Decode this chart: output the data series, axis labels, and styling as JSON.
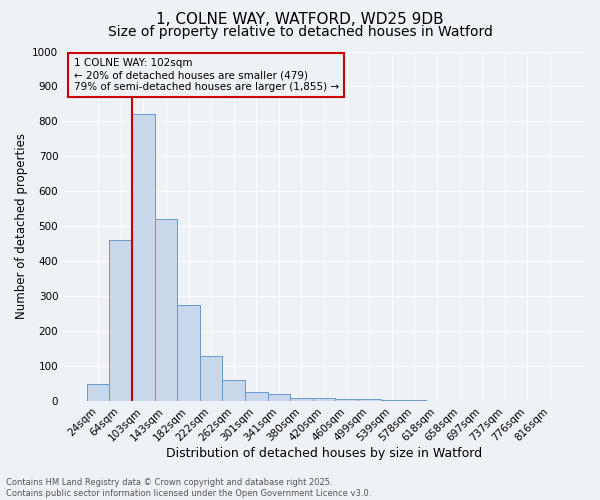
{
  "title": "1, COLNE WAY, WATFORD, WD25 9DB",
  "subtitle": "Size of property relative to detached houses in Watford",
  "xlabel": "Distribution of detached houses by size in Watford",
  "ylabel": "Number of detached properties",
  "categories": [
    "24sqm",
    "64sqm",
    "103sqm",
    "143sqm",
    "182sqm",
    "222sqm",
    "262sqm",
    "301sqm",
    "341sqm",
    "380sqm",
    "420sqm",
    "460sqm",
    "499sqm",
    "539sqm",
    "578sqm",
    "618sqm",
    "658sqm",
    "697sqm",
    "737sqm",
    "776sqm",
    "816sqm"
  ],
  "values": [
    50,
    460,
    820,
    520,
    275,
    130,
    60,
    25,
    20,
    10,
    10,
    5,
    5,
    2,
    2,
    1,
    1,
    1,
    1,
    1,
    1
  ],
  "highlight_index": 2,
  "bar_color": "#c8d8ea",
  "bar_edge_color": "#6699cc",
  "highlight_line_color": "#cc0000",
  "ylim": [
    0,
    1000
  ],
  "yticks": [
    0,
    100,
    200,
    300,
    400,
    500,
    600,
    700,
    800,
    900,
    1000
  ],
  "annotation_line1": "1 COLNE WAY: 102sqm",
  "annotation_line2": "← 20% of detached houses are smaller (479)",
  "annotation_line3": "79% of semi-detached houses are larger (1,855) →",
  "annotation_box_color": "#cc0000",
  "footnote1": "Contains HM Land Registry data © Crown copyright and database right 2025.",
  "footnote2": "Contains public sector information licensed under the Open Government Licence v3.0.",
  "background_color": "#eef2f7",
  "grid_color": "#ffffff",
  "title_fontsize": 11,
  "subtitle_fontsize": 10,
  "xlabel_fontsize": 9,
  "ylabel_fontsize": 8.5,
  "tick_fontsize": 7.5,
  "footnote_fontsize": 6,
  "annotation_fontsize": 7.5
}
